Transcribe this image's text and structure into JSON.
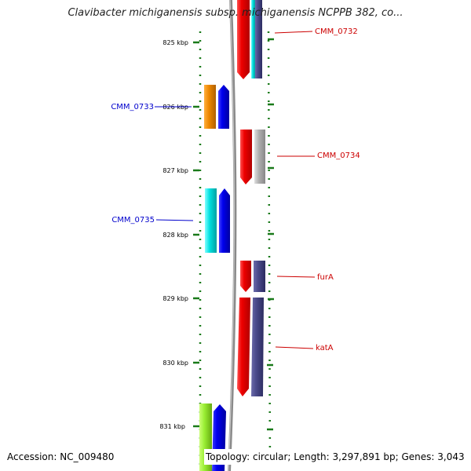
{
  "title": "Clavibacter michiganensis subsp. michiganensis NCPPB 382, co...",
  "ruler": {
    "unit": "kbp",
    "ticks": [
      "825 kbp",
      "826 kbp",
      "827 kbp",
      "828 kbp",
      "829 kbp",
      "830 kbp",
      "831 kbp"
    ]
  },
  "genes": {
    "forward_strand": [
      "CMM_0732",
      "CMM_0734",
      "furA",
      "katA"
    ],
    "reverse_strand": [
      "CMM_0733",
      "CMM_0735"
    ]
  },
  "colors": {
    "forward_label": "#cc0000",
    "reverse_label": "#0000cc",
    "tick": "#1a7a1a",
    "backbone": "#808080",
    "gene_red": "#ee0000",
    "gene_blue": "#0000ee",
    "gene_navy": "#4a4a8a",
    "gene_gray": "#b0b0b0",
    "gene_orange": "#ee8800",
    "gene_cyan": "#00e0e0",
    "gene_lime": "#99ee33"
  },
  "footer": {
    "accession": "Accession: NC_009480",
    "info": "Topology: circular; Length: 3,297,891 bp; Genes: 3,043"
  }
}
